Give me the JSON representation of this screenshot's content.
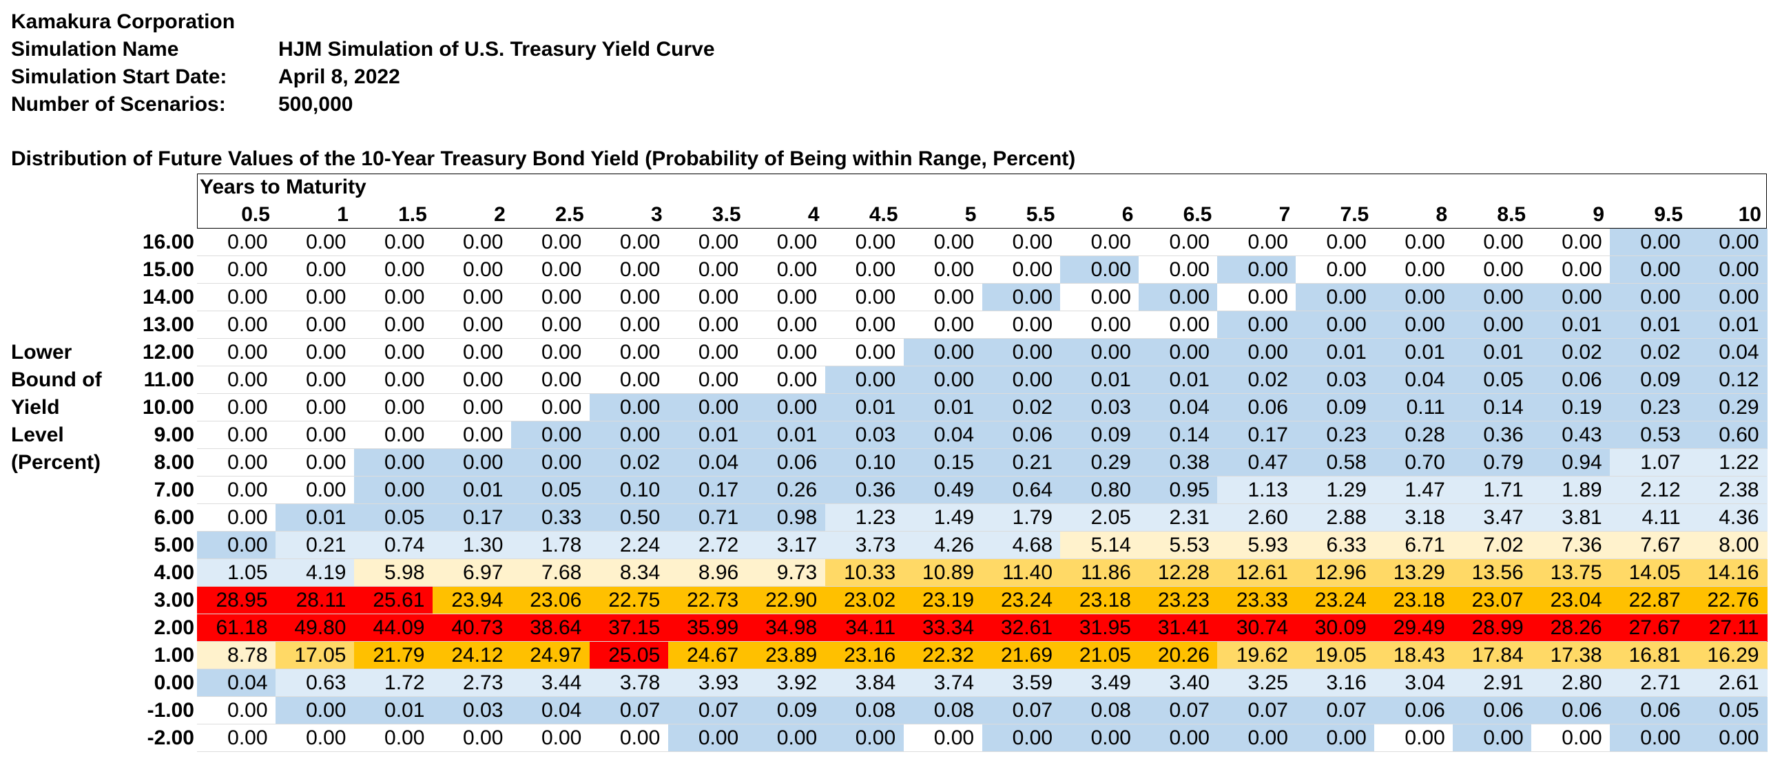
{
  "header": {
    "company": "Kamakura Corporation",
    "simulation_name_label": "Simulation Name",
    "simulation_name": "HJM Simulation of U.S. Treasury Yield Curve",
    "start_date_label": "Simulation Start Date:",
    "start_date": "April 8, 2022",
    "scenarios_label": "Number of Scenarios:",
    "scenarios": "500,000"
  },
  "table_title": "Distribution of Future Values of the 10-Year Treasury Bond Yield (Probability of Being within Range, Percent)",
  "column_group_label": "Years to Maturity",
  "side_label": [
    "Lower",
    "Bound of",
    "Yield",
    "Level",
    "(Percent)"
  ],
  "columns": [
    "0.5",
    "1",
    "1.5",
    "2",
    "2.5",
    "3",
    "3.5",
    "4",
    "4.5",
    "5",
    "5.5",
    "6",
    "6.5",
    "7",
    "7.5",
    "8",
    "8.5",
    "9",
    "9.5",
    "10"
  ],
  "colors": {
    "white": "#ffffff",
    "blue": "#bdd7ee",
    "lightblue": "#ddebf7",
    "cream": "#fff2cc",
    "lightorange": "#ffd966",
    "orange": "#ffc000",
    "red": "#ff0000"
  },
  "rows": [
    {
      "label": "16.00",
      "values": [
        "0.00",
        "0.00",
        "0.00",
        "0.00",
        "0.00",
        "0.00",
        "0.00",
        "0.00",
        "0.00",
        "0.00",
        "0.00",
        "0.00",
        "0.00",
        "0.00",
        "0.00",
        "0.00",
        "0.00",
        "0.00",
        "0.00",
        "0.00"
      ],
      "colors": [
        "white",
        "white",
        "white",
        "white",
        "white",
        "white",
        "white",
        "white",
        "white",
        "white",
        "white",
        "white",
        "white",
        "white",
        "white",
        "white",
        "white",
        "white",
        "blue",
        "blue"
      ]
    },
    {
      "label": "15.00",
      "values": [
        "0.00",
        "0.00",
        "0.00",
        "0.00",
        "0.00",
        "0.00",
        "0.00",
        "0.00",
        "0.00",
        "0.00",
        "0.00",
        "0.00",
        "0.00",
        "0.00",
        "0.00",
        "0.00",
        "0.00",
        "0.00",
        "0.00",
        "0.00"
      ],
      "colors": [
        "white",
        "white",
        "white",
        "white",
        "white",
        "white",
        "white",
        "white",
        "white",
        "white",
        "white",
        "blue",
        "white",
        "blue",
        "white",
        "white",
        "white",
        "white",
        "blue",
        "blue"
      ]
    },
    {
      "label": "14.00",
      "values": [
        "0.00",
        "0.00",
        "0.00",
        "0.00",
        "0.00",
        "0.00",
        "0.00",
        "0.00",
        "0.00",
        "0.00",
        "0.00",
        "0.00",
        "0.00",
        "0.00",
        "0.00",
        "0.00",
        "0.00",
        "0.00",
        "0.00",
        "0.00"
      ],
      "colors": [
        "white",
        "white",
        "white",
        "white",
        "white",
        "white",
        "white",
        "white",
        "white",
        "white",
        "blue",
        "white",
        "blue",
        "white",
        "blue",
        "blue",
        "blue",
        "blue",
        "blue",
        "blue"
      ]
    },
    {
      "label": "13.00",
      "values": [
        "0.00",
        "0.00",
        "0.00",
        "0.00",
        "0.00",
        "0.00",
        "0.00",
        "0.00",
        "0.00",
        "0.00",
        "0.00",
        "0.00",
        "0.00",
        "0.00",
        "0.00",
        "0.00",
        "0.00",
        "0.01",
        "0.01",
        "0.01"
      ],
      "colors": [
        "white",
        "white",
        "white",
        "white",
        "white",
        "white",
        "white",
        "white",
        "white",
        "white",
        "white",
        "white",
        "white",
        "blue",
        "blue",
        "blue",
        "blue",
        "blue",
        "blue",
        "blue"
      ]
    },
    {
      "label": "12.00",
      "values": [
        "0.00",
        "0.00",
        "0.00",
        "0.00",
        "0.00",
        "0.00",
        "0.00",
        "0.00",
        "0.00",
        "0.00",
        "0.00",
        "0.00",
        "0.00",
        "0.00",
        "0.01",
        "0.01",
        "0.01",
        "0.02",
        "0.02",
        "0.04"
      ],
      "colors": [
        "white",
        "white",
        "white",
        "white",
        "white",
        "white",
        "white",
        "white",
        "white",
        "blue",
        "blue",
        "blue",
        "blue",
        "blue",
        "blue",
        "blue",
        "blue",
        "blue",
        "blue",
        "blue"
      ]
    },
    {
      "label": "11.00",
      "values": [
        "0.00",
        "0.00",
        "0.00",
        "0.00",
        "0.00",
        "0.00",
        "0.00",
        "0.00",
        "0.00",
        "0.00",
        "0.00",
        "0.01",
        "0.01",
        "0.02",
        "0.03",
        "0.04",
        "0.05",
        "0.06",
        "0.09",
        "0.12"
      ],
      "colors": [
        "white",
        "white",
        "white",
        "white",
        "white",
        "white",
        "white",
        "white",
        "blue",
        "blue",
        "blue",
        "blue",
        "blue",
        "blue",
        "blue",
        "blue",
        "blue",
        "blue",
        "blue",
        "blue"
      ]
    },
    {
      "label": "10.00",
      "values": [
        "0.00",
        "0.00",
        "0.00",
        "0.00",
        "0.00",
        "0.00",
        "0.00",
        "0.00",
        "0.01",
        "0.01",
        "0.02",
        "0.03",
        "0.04",
        "0.06",
        "0.09",
        "0.11",
        "0.14",
        "0.19",
        "0.23",
        "0.29"
      ],
      "colors": [
        "white",
        "white",
        "white",
        "white",
        "white",
        "blue",
        "blue",
        "blue",
        "blue",
        "blue",
        "blue",
        "blue",
        "blue",
        "blue",
        "blue",
        "blue",
        "blue",
        "blue",
        "blue",
        "blue"
      ]
    },
    {
      "label": "9.00",
      "values": [
        "0.00",
        "0.00",
        "0.00",
        "0.00",
        "0.00",
        "0.00",
        "0.01",
        "0.01",
        "0.03",
        "0.04",
        "0.06",
        "0.09",
        "0.14",
        "0.17",
        "0.23",
        "0.28",
        "0.36",
        "0.43",
        "0.53",
        "0.60"
      ],
      "colors": [
        "white",
        "white",
        "white",
        "white",
        "blue",
        "blue",
        "blue",
        "blue",
        "blue",
        "blue",
        "blue",
        "blue",
        "blue",
        "blue",
        "blue",
        "blue",
        "blue",
        "blue",
        "blue",
        "blue"
      ]
    },
    {
      "label": "8.00",
      "values": [
        "0.00",
        "0.00",
        "0.00",
        "0.00",
        "0.00",
        "0.02",
        "0.04",
        "0.06",
        "0.10",
        "0.15",
        "0.21",
        "0.29",
        "0.38",
        "0.47",
        "0.58",
        "0.70",
        "0.79",
        "0.94",
        "1.07",
        "1.22"
      ],
      "colors": [
        "white",
        "white",
        "blue",
        "blue",
        "blue",
        "blue",
        "blue",
        "blue",
        "blue",
        "blue",
        "blue",
        "blue",
        "blue",
        "blue",
        "blue",
        "blue",
        "blue",
        "blue",
        "lightblue",
        "lightblue"
      ]
    },
    {
      "label": "7.00",
      "values": [
        "0.00",
        "0.00",
        "0.00",
        "0.01",
        "0.05",
        "0.10",
        "0.17",
        "0.26",
        "0.36",
        "0.49",
        "0.64",
        "0.80",
        "0.95",
        "1.13",
        "1.29",
        "1.47",
        "1.71",
        "1.89",
        "2.12",
        "2.38"
      ],
      "colors": [
        "white",
        "white",
        "blue",
        "blue",
        "blue",
        "blue",
        "blue",
        "blue",
        "blue",
        "blue",
        "blue",
        "blue",
        "blue",
        "lightblue",
        "lightblue",
        "lightblue",
        "lightblue",
        "lightblue",
        "lightblue",
        "lightblue"
      ]
    },
    {
      "label": "6.00",
      "values": [
        "0.00",
        "0.01",
        "0.05",
        "0.17",
        "0.33",
        "0.50",
        "0.71",
        "0.98",
        "1.23",
        "1.49",
        "1.79",
        "2.05",
        "2.31",
        "2.60",
        "2.88",
        "3.18",
        "3.47",
        "3.81",
        "4.11",
        "4.36"
      ],
      "colors": [
        "white",
        "blue",
        "blue",
        "blue",
        "blue",
        "blue",
        "blue",
        "blue",
        "lightblue",
        "lightblue",
        "lightblue",
        "lightblue",
        "lightblue",
        "lightblue",
        "lightblue",
        "lightblue",
        "lightblue",
        "lightblue",
        "lightblue",
        "lightblue"
      ]
    },
    {
      "label": "5.00",
      "values": [
        "0.00",
        "0.21",
        "0.74",
        "1.30",
        "1.78",
        "2.24",
        "2.72",
        "3.17",
        "3.73",
        "4.26",
        "4.68",
        "5.14",
        "5.53",
        "5.93",
        "6.33",
        "6.71",
        "7.02",
        "7.36",
        "7.67",
        "8.00"
      ],
      "colors": [
        "blue",
        "lightblue",
        "lightblue",
        "lightblue",
        "lightblue",
        "lightblue",
        "lightblue",
        "lightblue",
        "lightblue",
        "lightblue",
        "lightblue",
        "cream",
        "cream",
        "cream",
        "cream",
        "cream",
        "cream",
        "cream",
        "cream",
        "cream"
      ]
    },
    {
      "label": "4.00",
      "values": [
        "1.05",
        "4.19",
        "5.98",
        "6.97",
        "7.68",
        "8.34",
        "8.96",
        "9.73",
        "10.33",
        "10.89",
        "11.40",
        "11.86",
        "12.28",
        "12.61",
        "12.96",
        "13.29",
        "13.56",
        "13.75",
        "14.05",
        "14.16"
      ],
      "colors": [
        "lightblue",
        "lightblue",
        "cream",
        "cream",
        "cream",
        "cream",
        "cream",
        "cream",
        "lightorange",
        "lightorange",
        "lightorange",
        "lightorange",
        "lightorange",
        "lightorange",
        "lightorange",
        "lightorange",
        "lightorange",
        "lightorange",
        "lightorange",
        "lightorange"
      ]
    },
    {
      "label": "3.00",
      "values": [
        "28.95",
        "28.11",
        "25.61",
        "23.94",
        "23.06",
        "22.75",
        "22.73",
        "22.90",
        "23.02",
        "23.19",
        "23.24",
        "23.18",
        "23.23",
        "23.33",
        "23.24",
        "23.18",
        "23.07",
        "23.04",
        "22.87",
        "22.76"
      ],
      "colors": [
        "red",
        "red",
        "red",
        "orange",
        "orange",
        "orange",
        "orange",
        "orange",
        "orange",
        "orange",
        "orange",
        "orange",
        "orange",
        "orange",
        "orange",
        "orange",
        "orange",
        "orange",
        "orange",
        "orange"
      ]
    },
    {
      "label": "2.00",
      "values": [
        "61.18",
        "49.80",
        "44.09",
        "40.73",
        "38.64",
        "37.15",
        "35.99",
        "34.98",
        "34.11",
        "33.34",
        "32.61",
        "31.95",
        "31.41",
        "30.74",
        "30.09",
        "29.49",
        "28.99",
        "28.26",
        "27.67",
        "27.11"
      ],
      "colors": [
        "red",
        "red",
        "red",
        "red",
        "red",
        "red",
        "red",
        "red",
        "red",
        "red",
        "red",
        "red",
        "red",
        "red",
        "red",
        "red",
        "red",
        "red",
        "red",
        "red"
      ]
    },
    {
      "label": "1.00",
      "values": [
        "8.78",
        "17.05",
        "21.79",
        "24.12",
        "24.97",
        "25.05",
        "24.67",
        "23.89",
        "23.16",
        "22.32",
        "21.69",
        "21.05",
        "20.26",
        "19.62",
        "19.05",
        "18.43",
        "17.84",
        "17.38",
        "16.81",
        "16.29"
      ],
      "colors": [
        "cream",
        "lightorange",
        "orange",
        "orange",
        "orange",
        "red",
        "orange",
        "orange",
        "orange",
        "orange",
        "orange",
        "orange",
        "orange",
        "lightorange",
        "lightorange",
        "lightorange",
        "lightorange",
        "lightorange",
        "lightorange",
        "lightorange"
      ]
    },
    {
      "label": "0.00",
      "values": [
        "0.04",
        "0.63",
        "1.72",
        "2.73",
        "3.44",
        "3.78",
        "3.93",
        "3.92",
        "3.84",
        "3.74",
        "3.59",
        "3.49",
        "3.40",
        "3.25",
        "3.16",
        "3.04",
        "2.91",
        "2.80",
        "2.71",
        "2.61"
      ],
      "colors": [
        "blue",
        "lightblue",
        "lightblue",
        "lightblue",
        "lightblue",
        "lightblue",
        "lightblue",
        "lightblue",
        "lightblue",
        "lightblue",
        "lightblue",
        "lightblue",
        "lightblue",
        "lightblue",
        "lightblue",
        "lightblue",
        "lightblue",
        "lightblue",
        "lightblue",
        "lightblue"
      ]
    },
    {
      "label": "-1.00",
      "values": [
        "0.00",
        "0.00",
        "0.01",
        "0.03",
        "0.04",
        "0.07",
        "0.07",
        "0.09",
        "0.08",
        "0.08",
        "0.07",
        "0.08",
        "0.07",
        "0.07",
        "0.07",
        "0.06",
        "0.06",
        "0.06",
        "0.06",
        "0.05"
      ],
      "colors": [
        "white",
        "blue",
        "blue",
        "blue",
        "blue",
        "blue",
        "blue",
        "blue",
        "blue",
        "blue",
        "blue",
        "blue",
        "blue",
        "blue",
        "blue",
        "blue",
        "blue",
        "blue",
        "blue",
        "blue"
      ]
    },
    {
      "label": "-2.00",
      "values": [
        "0.00",
        "0.00",
        "0.00",
        "0.00",
        "0.00",
        "0.00",
        "0.00",
        "0.00",
        "0.00",
        "0.00",
        "0.00",
        "0.00",
        "0.00",
        "0.00",
        "0.00",
        "0.00",
        "0.00",
        "0.00",
        "0.00",
        "0.00"
      ],
      "colors": [
        "white",
        "white",
        "white",
        "white",
        "white",
        "white",
        "blue",
        "blue",
        "blue",
        "white",
        "blue",
        "blue",
        "blue",
        "blue",
        "blue",
        "white",
        "blue",
        "white",
        "blue",
        "blue"
      ]
    }
  ]
}
